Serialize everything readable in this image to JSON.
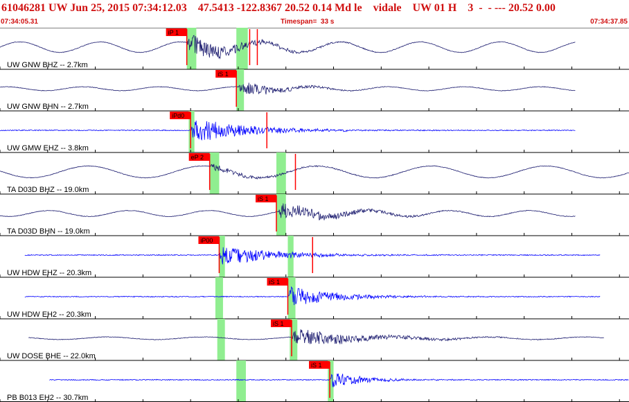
{
  "header": {
    "title": "61046281 UW Jun 25, 2015 07:34:12.03    47.5413 -122.8367 20.52 0.14 Md le    vidale    UW 01 H    3  -  - --- 20.52 0.00",
    "start_time": "07:34:05.31",
    "timespan": "Timespan=  33 s",
    "end_time": "07:34:37.85"
  },
  "colors": {
    "title": "#d01010",
    "trace_dark": "#1a1a6e",
    "trace_blue": "#0000ff",
    "pick_box": "#ff0000",
    "pick_window": "#90ee90",
    "grid": "#000000"
  },
  "chart_data": {
    "type": "line",
    "x_range_s": [
      0,
      33
    ],
    "grid": "vertical tick every 2.5 s",
    "traces": [
      {
        "label": "UW GNW BHZ -- 2.7km",
        "color": "dark",
        "style": "longperiod",
        "signal_start_s": 0,
        "signal_end_s": 30.2,
        "onset_s": 9.8,
        "amp": 0.75,
        "lp_amp": 0.8,
        "lp_period_s": 4.2,
        "decay_s": 2.8,
        "picks": [
          {
            "label": "iP 1",
            "t": 9.8,
            "up": true
          },
          {
            "label": "",
            "t": 13.1,
            "up": true
          },
          {
            "label": "",
            "t": 13.5,
            "up": true
          }
        ],
        "windows": [
          {
            "t0": 9.8,
            "t1": 10.3
          },
          {
            "t0": 12.4,
            "t1": 13.0
          }
        ]
      },
      {
        "label": "UW GNW BHN -- 2.7km",
        "color": "dark",
        "style": "longperiod",
        "signal_start_s": 0,
        "signal_end_s": 30.2,
        "onset_s": 12.5,
        "amp": 0.55,
        "lp_amp": 0.3,
        "lp_period_s": 4.0,
        "decay_s": 2.0,
        "picks": [
          {
            "label": "iS 1",
            "t": 12.4,
            "up": false
          }
        ],
        "windows": [
          {
            "t0": 12.4,
            "t1": 12.8
          }
        ]
      },
      {
        "label": "UW GMW EHZ -- 3.8km",
        "color": "blue",
        "style": "highfreq",
        "signal_start_s": 0,
        "signal_end_s": 30.2,
        "onset_s": 10.0,
        "amp": 0.9,
        "lp_amp": 0,
        "lp_period_s": 1,
        "decay_s": 3.0,
        "picks": [
          {
            "label": "iPd0",
            "t": 10.0,
            "up": true
          },
          {
            "label": "",
            "t": 14.0,
            "up": true
          }
        ],
        "windows": [
          {
            "t0": 9.9,
            "t1": 10.2
          }
        ]
      },
      {
        "label": "TA D03D BHZ -- 19.0km",
        "color": "dark",
        "style": "longperiod",
        "signal_start_s": 0,
        "signal_end_s": 33,
        "onset_s": 11.0,
        "amp": 0.25,
        "lp_amp": 0.9,
        "lp_period_s": 6.0,
        "decay_s": 3.0,
        "picks": [
          {
            "label": "eP 2",
            "t": 11.0,
            "up": true
          },
          {
            "label": "",
            "t": 15.5,
            "up": true
          }
        ],
        "windows": [
          {
            "t0": 11.0,
            "t1": 11.5
          },
          {
            "t0": 14.5,
            "t1": 15.0
          }
        ]
      },
      {
        "label": "TA D03D BHN -- 19.0km",
        "color": "dark",
        "style": "longperiod",
        "signal_start_s": 0,
        "signal_end_s": 30.2,
        "onset_s": 14.6,
        "amp": 0.55,
        "lp_amp": 0.45,
        "lp_period_s": 4.2,
        "decay_s": 3.2,
        "picks": [
          {
            "label": "iS 1",
            "t": 14.5,
            "up": false
          }
        ],
        "windows": [
          {
            "t0": 14.5,
            "t1": 15.0
          }
        ]
      },
      {
        "label": "UW HDW EHZ -- 20.3km",
        "color": "blue",
        "style": "highfreq",
        "signal_start_s": 1.3,
        "signal_end_s": 31.5,
        "onset_s": 11.5,
        "amp": 0.7,
        "lp_amp": 0,
        "lp_period_s": 1,
        "decay_s": 3.0,
        "picks": [
          {
            "label": "iP00",
            "t": 11.5,
            "up": true
          },
          {
            "label": "",
            "t": 16.4,
            "up": true
          }
        ],
        "windows": [
          {
            "t0": 11.5,
            "t1": 11.8
          },
          {
            "t0": 15.1,
            "t1": 15.4
          }
        ]
      },
      {
        "label": "UW HDW EH2 -- 20.3km",
        "color": "blue",
        "style": "highfreq",
        "signal_start_s": 1.3,
        "signal_end_s": 31.5,
        "onset_s": 15.1,
        "amp": 0.7,
        "lp_amp": 0,
        "lp_period_s": 1,
        "decay_s": 2.6,
        "picks": [
          {
            "label": "iS 1",
            "t": 15.1,
            "up": false
          }
        ],
        "windows": [
          {
            "t0": 11.3,
            "t1": 11.7
          },
          {
            "t0": 15.1,
            "t1": 15.5
          }
        ]
      },
      {
        "label": "UW DOSE BHE -- 22.0km",
        "color": "dark",
        "style": "longperiod",
        "signal_start_s": 1.5,
        "signal_end_s": 31.7,
        "onset_s": 15.3,
        "amp": 0.6,
        "lp_amp": 0.2,
        "lp_period_s": 5.0,
        "decay_s": 3.8,
        "picks": [
          {
            "label": "iS 1",
            "t": 15.3,
            "up": false
          }
        ],
        "windows": [
          {
            "t0": 11.4,
            "t1": 11.8
          },
          {
            "t0": 15.2,
            "t1": 15.6
          }
        ]
      },
      {
        "label": "PB B013 EH2 -- 30.7km",
        "color": "blue",
        "style": "highfreq",
        "signal_start_s": 2.6,
        "signal_end_s": 33,
        "onset_s": 17.3,
        "amp": 0.55,
        "lp_amp": 0,
        "lp_period_s": 1,
        "decay_s": 1.8,
        "picks": [
          {
            "label": "iS 1",
            "t": 17.3,
            "up": false
          }
        ],
        "windows": [
          {
            "t0": 12.4,
            "t1": 12.9
          },
          {
            "t0": 17.2,
            "t1": 17.5
          }
        ]
      }
    ]
  }
}
